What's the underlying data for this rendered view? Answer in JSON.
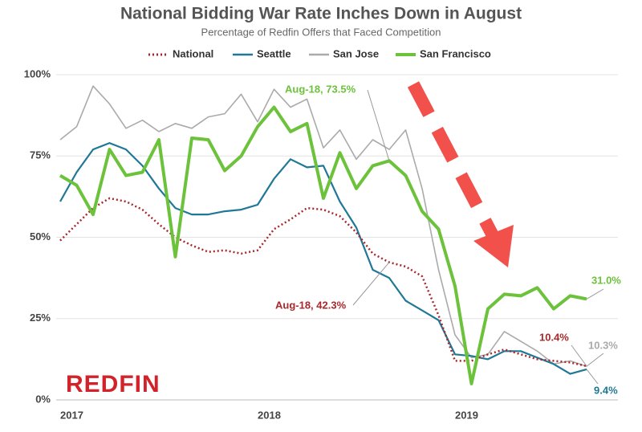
{
  "chart_data": {
    "type": "line",
    "title": "National Bidding War Rate Inches Down in August",
    "subtitle": "Percentage of Redfin Offers that Faced Competition",
    "logo": "REDFIN",
    "categories": [
      null,
      "2017",
      null,
      null,
      null,
      null,
      null,
      null,
      null,
      null,
      null,
      null,
      null,
      "2018",
      null,
      null,
      null,
      null,
      null,
      null,
      null,
      null,
      null,
      null,
      null,
      "2019",
      null,
      null,
      null,
      null,
      null,
      null,
      null
    ],
    "ylim": [
      0,
      100
    ],
    "yticks": [
      {
        "value": 0,
        "label": "0%"
      },
      {
        "value": 25,
        "label": "25%"
      },
      {
        "value": 50,
        "label": "50%"
      },
      {
        "value": 75,
        "label": "75%"
      },
      {
        "value": 100,
        "label": "100%"
      }
    ],
    "grid": true,
    "legend": "top",
    "series": [
      {
        "name": "National",
        "color": "#a8282c",
        "dash": "dotted",
        "values": [
          49,
          54,
          59,
          62,
          61,
          58.5,
          54,
          50,
          47.5,
          45.5,
          46,
          45,
          46,
          52.5,
          55.5,
          59,
          58.5,
          56.5,
          51.5,
          45,
          42.3,
          41,
          38,
          26,
          12,
          12,
          14,
          15.5,
          14,
          12.5,
          12,
          11.5,
          10.4
        ],
        "value_labels": [
          null,
          null,
          null,
          null,
          null,
          null,
          null,
          null,
          null,
          null,
          null,
          null,
          null,
          null,
          null,
          null,
          null,
          null,
          null,
          null,
          "Aug-18, 42.3%",
          null,
          null,
          null,
          null,
          null,
          null,
          null,
          null,
          null,
          null,
          null,
          "10.4%"
        ]
      },
      {
        "name": "Seattle",
        "color": "#1f7896",
        "values": [
          61,
          70,
          77,
          79,
          77,
          72,
          65,
          59,
          57,
          57,
          58,
          58.5,
          60,
          68,
          74,
          71.5,
          72,
          61,
          53,
          40,
          37.5,
          30.5,
          27.5,
          24.5,
          14,
          13.5,
          12.5,
          15,
          15,
          13,
          11,
          8,
          9.4
        ],
        "value_labels": [
          null,
          null,
          null,
          null,
          null,
          null,
          null,
          null,
          null,
          null,
          null,
          null,
          null,
          null,
          null,
          null,
          null,
          null,
          null,
          null,
          null,
          null,
          null,
          null,
          null,
          null,
          null,
          null,
          null,
          null,
          null,
          null,
          "9.4%"
        ]
      },
      {
        "name": "San Jose",
        "color": "#aaaaaa",
        "values": [
          80,
          84,
          96.5,
          91,
          83.5,
          86,
          82.5,
          85,
          83.5,
          87,
          88,
          94,
          85.5,
          95.5,
          90,
          92.5,
          77.5,
          83,
          74,
          80,
          77,
          83,
          65,
          40,
          20,
          13,
          14,
          21,
          18,
          15,
          11,
          12,
          10.3
        ],
        "value_labels": [
          null,
          null,
          null,
          null,
          null,
          null,
          null,
          null,
          null,
          null,
          null,
          null,
          null,
          null,
          null,
          null,
          null,
          null,
          null,
          null,
          null,
          null,
          null,
          null,
          null,
          null,
          null,
          null,
          null,
          null,
          null,
          null,
          "10.3%"
        ]
      },
      {
        "name": "San Francisco",
        "color": "#6cc23a",
        "values": [
          69,
          66,
          57,
          77,
          69,
          70,
          80,
          44,
          80.5,
          80,
          70.5,
          75,
          84,
          90,
          82.5,
          85,
          62,
          76,
          65,
          72,
          73.5,
          69,
          58,
          52.5,
          35,
          5,
          28,
          32.5,
          32,
          34.5,
          28,
          32,
          31
        ],
        "value_labels": [
          null,
          null,
          null,
          null,
          null,
          null,
          null,
          null,
          null,
          null,
          null,
          null,
          null,
          null,
          null,
          null,
          null,
          null,
          null,
          null,
          "Aug-18, 73.5%",
          null,
          null,
          null,
          null,
          null,
          null,
          null,
          null,
          null,
          null,
          null,
          "31.0%"
        ]
      }
    ]
  }
}
